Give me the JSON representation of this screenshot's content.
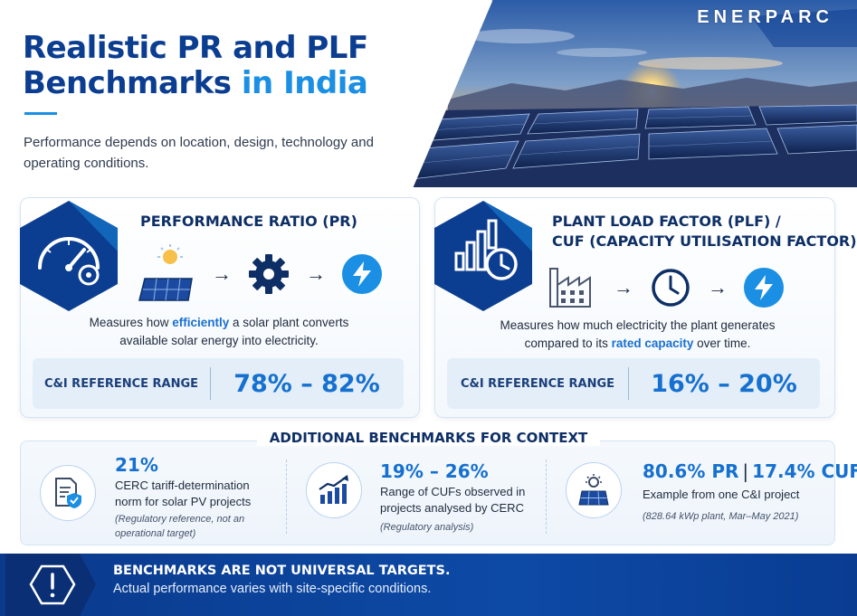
{
  "header": {
    "title_line1": "Realistic PR and PLF",
    "title_line2_a": "Benchmarks ",
    "title_line2_b": "in India",
    "subtitle": "Performance depends on location, design, technology and operating conditions.",
    "brand": "ENERPARC"
  },
  "pr_card": {
    "title": "PERFORMANCE RATIO (PR)",
    "arrow": "→",
    "desc_before": "Measures how ",
    "desc_em": "efficiently",
    "desc_after": " a solar plant converts available solar energy into electricity.",
    "ref_label": "C&I REFERENCE RANGE",
    "ref_value": "78% – 82%",
    "icons": [
      "gauge-gear-icon",
      "sun-solar-panel-icon",
      "gear-icon",
      "lightning-icon"
    ]
  },
  "plf_card": {
    "title_line1": "PLANT LOAD FACTOR (PLF) /",
    "title_line2": "CUF (CAPACITY UTILISATION FACTOR)",
    "arrow": "→",
    "desc_before": "Measures how much electricity the plant generates compared to its ",
    "desc_em": "rated capacity",
    "desc_after": " over time.",
    "ref_label": "C&I REFERENCE RANGE",
    "ref_value": "16% – 20%",
    "icons": [
      "bar-chart-clock-icon",
      "factory-icon",
      "clock-icon",
      "lightning-icon"
    ]
  },
  "additional": {
    "heading": "ADDITIONAL BENCHMARKS FOR CONTEXT",
    "items": [
      {
        "value": "21%",
        "text": "CERC tariff-determination norm for solar PV projects",
        "note": "(Regulatory reference, not an operational target)",
        "icon": "document-shield-icon"
      },
      {
        "value": "19% – 26%",
        "text": "Range of CUFs observed in projects analysed by CERC",
        "note": "(Regulatory analysis)",
        "icon": "growth-chart-icon"
      },
      {
        "value_a": "80.6% PR",
        "sep": "|",
        "value_b": "17.4% CUF",
        "text": "Example from one C&I project",
        "note": "(828.64 kWp plant, Mar–May 2021)",
        "icon": "sun-panel-icon"
      }
    ]
  },
  "footer": {
    "strong": "BENCHMARKS ARE NOT UNIVERSAL TARGETS.",
    "text": "Actual performance varies with site-specific conditions.",
    "icon": "exclamation-icon"
  },
  "colors": {
    "navy": "#0b3d91",
    "accent": "#1a8fe3",
    "value_blue": "#1570cf",
    "ref_bg": "#e4eef9"
  }
}
